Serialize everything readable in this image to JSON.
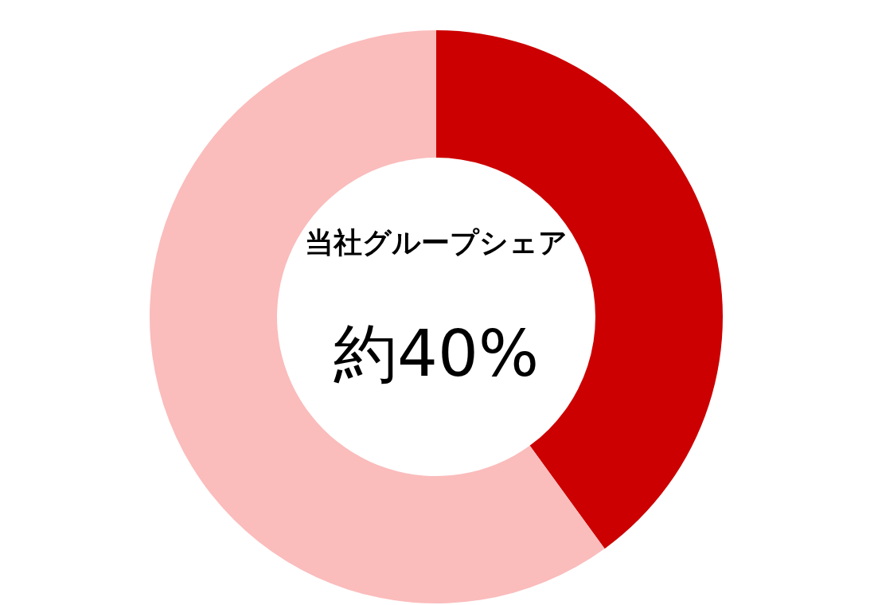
{
  "chart_data": {
    "type": "donut",
    "title": "当社グループシェア",
    "annotations": [
      "約40%"
    ],
    "categories": [
      null,
      null
    ],
    "values": [
      40,
      60
    ],
    "colors": [
      "#cc0000",
      "#fbbcbc"
    ]
  }
}
